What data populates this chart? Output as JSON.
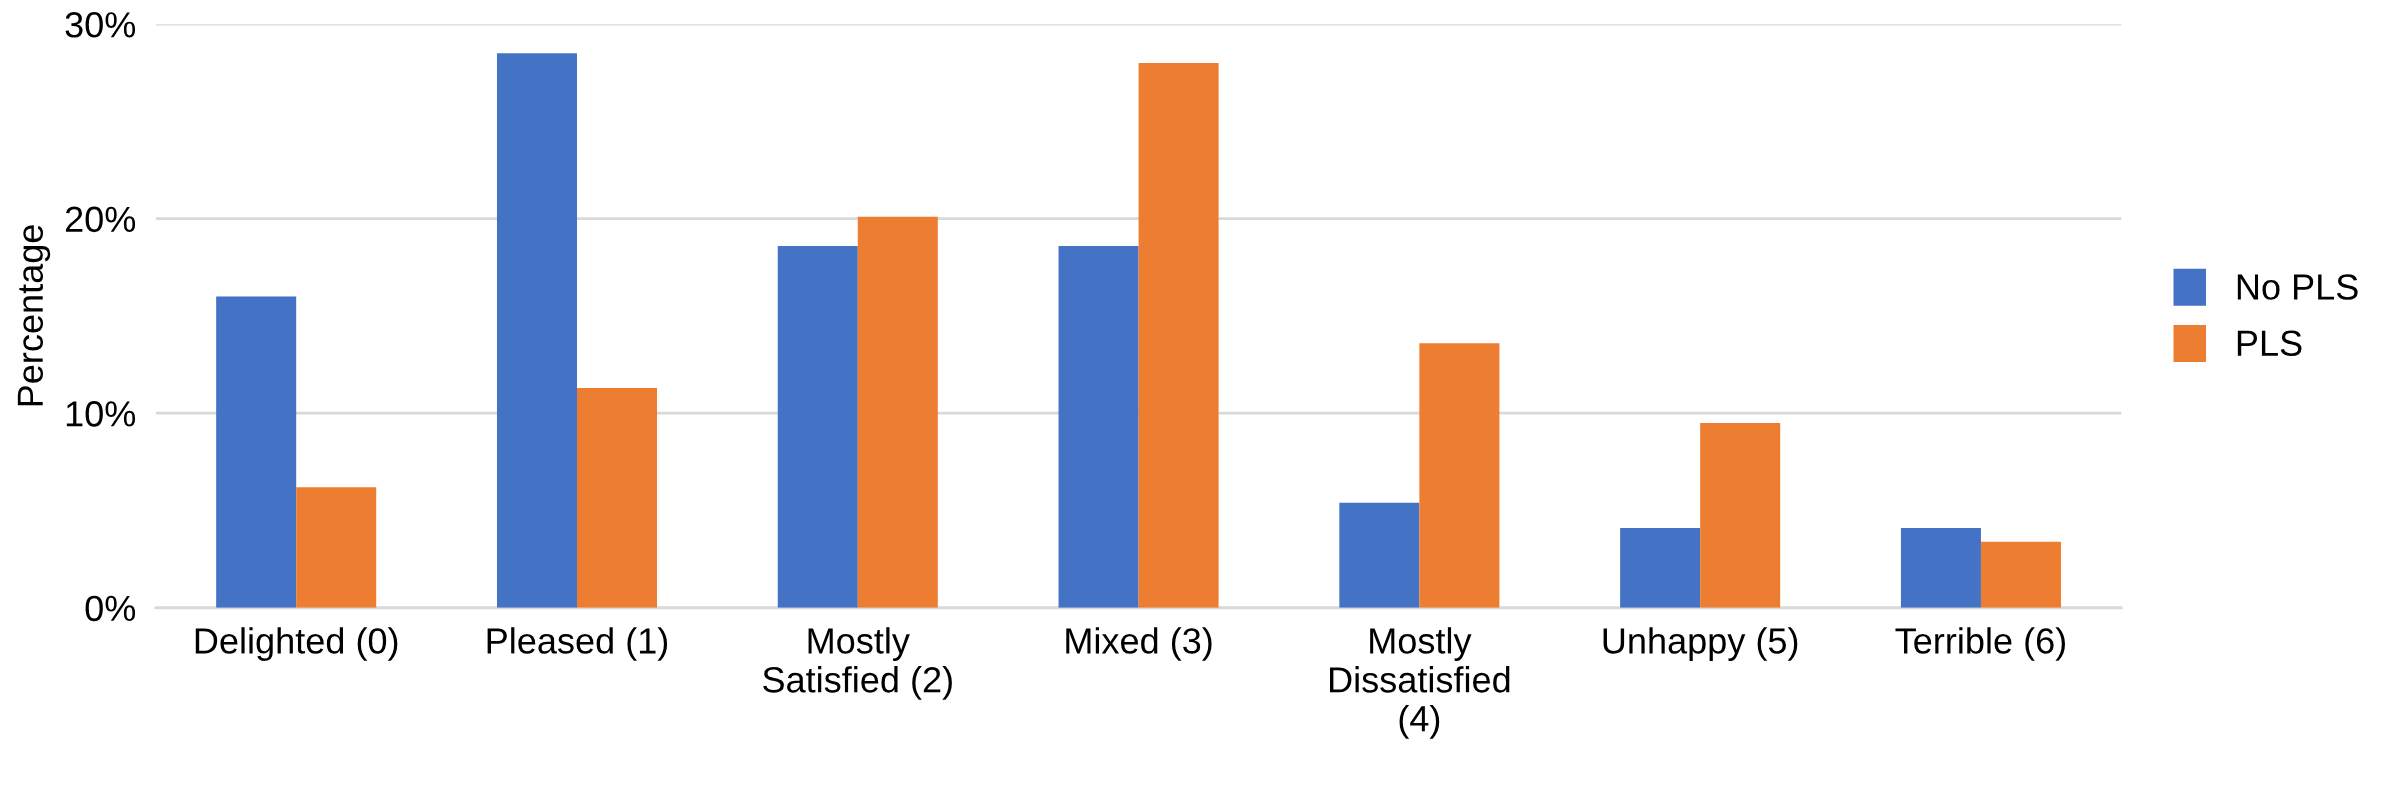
{
  "chart_data": {
    "type": "bar",
    "ylabel": "Percentage",
    "categories": [
      "Delighted (0)",
      "Pleased (1)",
      "Mostly\nSatisfied (2)",
      "Mixed (3)",
      "Mostly\nDissatisfied\n(4)",
      "Unhappy (5)",
      "Terrible (6)"
    ],
    "series": [
      {
        "name": "No PLS",
        "color": "#4472c4",
        "values": [
          16.0,
          28.5,
          18.6,
          18.6,
          5.4,
          4.1,
          4.1
        ]
      },
      {
        "name": "PLS",
        "color": "#ed7d31",
        "values": [
          6.2,
          11.3,
          20.1,
          28.0,
          13.6,
          9.5,
          3.4
        ]
      }
    ],
    "ylim": [
      0,
      30
    ],
    "yticks": [
      {
        "value": 0,
        "label": "0%"
      },
      {
        "value": 10,
        "label": "10%"
      },
      {
        "value": 20,
        "label": "20%"
      },
      {
        "value": 30,
        "label": "30%"
      }
    ],
    "grid": "y",
    "legend": "right"
  }
}
